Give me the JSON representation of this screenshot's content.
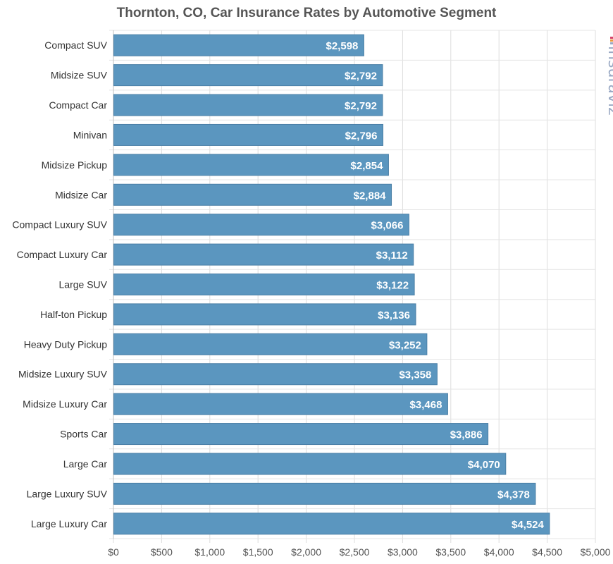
{
  "chart_data": {
    "type": "bar",
    "orientation": "horizontal",
    "title": "Thornton, CO, Car Insurance Rates by Automotive Segment",
    "categories": [
      "Compact SUV",
      "Midsize SUV",
      "Compact Car",
      "Minivan",
      "Midsize Pickup",
      "Midsize Car",
      "Compact Luxury SUV",
      "Compact Luxury Car",
      "Large SUV",
      "Half-ton Pickup",
      "Heavy Duty Pickup",
      "Midsize Luxury SUV",
      "Midsize Luxury Car",
      "Sports Car",
      "Large Car",
      "Large Luxury SUV",
      "Large Luxury Car"
    ],
    "values": [
      2598,
      2792,
      2792,
      2796,
      2854,
      2884,
      3066,
      3112,
      3122,
      3136,
      3252,
      3358,
      3468,
      3886,
      4070,
      4378,
      4524
    ],
    "value_labels": [
      "$2,598",
      "$2,792",
      "$2,792",
      "$2,796",
      "$2,854",
      "$2,884",
      "$3,066",
      "$3,112",
      "$3,122",
      "$3,136",
      "$3,252",
      "$3,358",
      "$3,468",
      "$3,886",
      "$4,070",
      "$4,378",
      "$4,524"
    ],
    "xlim": [
      0,
      5000
    ],
    "xticks": [
      0,
      500,
      1000,
      1500,
      2000,
      2500,
      3000,
      3500,
      4000,
      4500,
      5000
    ],
    "xtick_labels": [
      "$0",
      "$500",
      "$1,000",
      "$1,500",
      "$2,000",
      "$2,500",
      "$3,000",
      "$3,500",
      "$4,000",
      "$4,500",
      "$5,000"
    ],
    "grid": true,
    "bar_color": "#5b96bf",
    "bar_edge_color": "#4a7fa6"
  },
  "watermark": {
    "text": "insuraviz",
    "color": "#9aa9c4",
    "accent_colors": [
      "#d6456a",
      "#e89a3c",
      "#9aa9c4"
    ]
  }
}
